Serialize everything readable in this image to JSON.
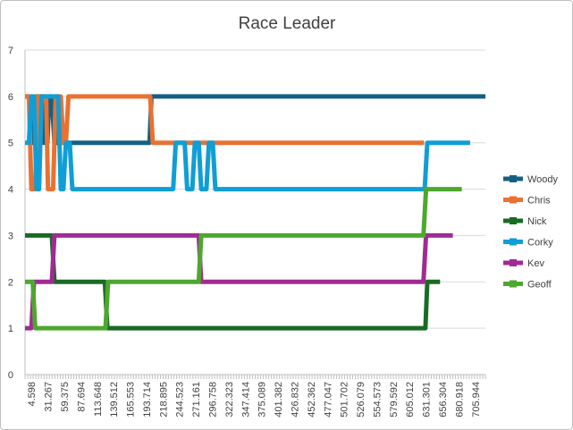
{
  "chart_data": {
    "type": "line",
    "title": "Race Leader",
    "xlabel": "",
    "ylabel": "",
    "ylim": [
      0,
      7
    ],
    "yticks": [
      "0",
      "1",
      "2",
      "3",
      "4",
      "5",
      "6",
      "7"
    ],
    "x_axis": "category",
    "xlim": [
      0,
      721
    ],
    "xtick_labels": [
      "4.598",
      "31.267",
      "59.375",
      "87.694",
      "113.648",
      "139.512",
      "165.553",
      "193.714",
      "218.895",
      "244.523",
      "271.161",
      "296.758",
      "322.323",
      "347.414",
      "375.089",
      "401.382",
      "426.832",
      "452.362",
      "477.047",
      "501.702",
      "526.079",
      "554.573",
      "579.592",
      "605.012",
      "631.301",
      "656.304",
      "680.918",
      "705.944"
    ],
    "grid": "horizontal",
    "legend_position": "right",
    "series": [
      {
        "name": "Woody",
        "color": "#156082",
        "points": [
          [
            0,
            6
          ],
          [
            7,
            6
          ],
          [
            10,
            5
          ],
          [
            14,
            5
          ],
          [
            18,
            6
          ],
          [
            26,
            6
          ],
          [
            29,
            5
          ],
          [
            35,
            5
          ],
          [
            38,
            6
          ],
          [
            42,
            6
          ],
          [
            46,
            5
          ],
          [
            50,
            5
          ],
          [
            54,
            6
          ],
          [
            58,
            5
          ],
          [
            195,
            5
          ],
          [
            198,
            6
          ],
          [
            721,
            6
          ]
        ]
      },
      {
        "name": "Chris",
        "color": "#E97132",
        "points": [
          [
            0,
            6
          ],
          [
            6,
            6
          ],
          [
            10,
            4
          ],
          [
            16,
            4
          ],
          [
            20,
            6
          ],
          [
            33,
            6
          ],
          [
            36,
            4
          ],
          [
            44,
            4
          ],
          [
            48,
            6
          ],
          [
            56,
            6
          ],
          [
            60,
            5
          ],
          [
            64,
            5
          ],
          [
            68,
            6
          ],
          [
            196,
            6
          ],
          [
            200,
            5
          ],
          [
            625,
            5
          ]
        ]
      },
      {
        "name": "Nick",
        "color": "#196B24",
        "points": [
          [
            0,
            3
          ],
          [
            42,
            3
          ],
          [
            46,
            2
          ],
          [
            125,
            2
          ],
          [
            129,
            1
          ],
          [
            627,
            1
          ],
          [
            630,
            2
          ],
          [
            650,
            2
          ]
        ]
      },
      {
        "name": "Corky",
        "color": "#0F9ED5",
        "points": [
          [
            0,
            5
          ],
          [
            6,
            5
          ],
          [
            10,
            6
          ],
          [
            14,
            6
          ],
          [
            18,
            4
          ],
          [
            22,
            4
          ],
          [
            26,
            6
          ],
          [
            52,
            6
          ],
          [
            56,
            4
          ],
          [
            60,
            4
          ],
          [
            64,
            5
          ],
          [
            70,
            5
          ],
          [
            74,
            4
          ],
          [
            232,
            4
          ],
          [
            236,
            5
          ],
          [
            250,
            5
          ],
          [
            254,
            4
          ],
          [
            262,
            4
          ],
          [
            266,
            5
          ],
          [
            272,
            5
          ],
          [
            276,
            4
          ],
          [
            284,
            4
          ],
          [
            288,
            5
          ],
          [
            294,
            5
          ],
          [
            298,
            4
          ],
          [
            626,
            4
          ],
          [
            630,
            5
          ],
          [
            697,
            5
          ]
        ]
      },
      {
        "name": "Kev",
        "color": "#A02B93",
        "points": [
          [
            0,
            1
          ],
          [
            10,
            1
          ],
          [
            14,
            2
          ],
          [
            42,
            2
          ],
          [
            46,
            3
          ],
          [
            272,
            3
          ],
          [
            276,
            2
          ],
          [
            624,
            2
          ],
          [
            628,
            3
          ],
          [
            670,
            3
          ]
        ]
      },
      {
        "name": "Geoff",
        "color": "#4EA72E",
        "points": [
          [
            0,
            2
          ],
          [
            12,
            2
          ],
          [
            16,
            1
          ],
          [
            126,
            1
          ],
          [
            130,
            2
          ],
          [
            272,
            2
          ],
          [
            276,
            3
          ],
          [
            624,
            3
          ],
          [
            628,
            4
          ],
          [
            684,
            4
          ]
        ]
      }
    ]
  }
}
